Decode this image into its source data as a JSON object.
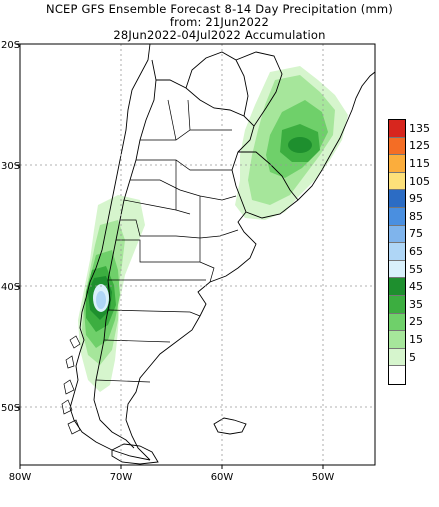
{
  "title": {
    "line1": "NCEP GFS Ensemble Forecast 8-14 Day Precipitation (mm)",
    "line2": "from: 21Jun2022",
    "line3": "28Jun2022-04Jul2022 Accumulation"
  },
  "axes": {
    "lat_labels": [
      "20S",
      "30S",
      "40S",
      "50S"
    ],
    "lon_labels": [
      "80W",
      "70W",
      "60W",
      "50W"
    ],
    "lat_range": [
      -54.5,
      -20
    ],
    "lon_range": [
      -80,
      -45
    ]
  },
  "legend": {
    "position": "right",
    "levels": [
      {
        "label": "135",
        "color": "#d7261e"
      },
      {
        "label": "125",
        "color": "#f46d25"
      },
      {
        "label": "115",
        "color": "#fbad3c"
      },
      {
        "label": "105",
        "color": "#fde07a"
      },
      {
        "label": "95",
        "color": "#2c6cc4"
      },
      {
        "label": "85",
        "color": "#4a8fe0"
      },
      {
        "label": "75",
        "color": "#7fb4ec"
      },
      {
        "label": "65",
        "color": "#afd6f6"
      },
      {
        "label": "55",
        "color": "#d9f0fb"
      },
      {
        "label": "45",
        "color": "#1e8f2e"
      },
      {
        "label": "35",
        "color": "#3cae40"
      },
      {
        "label": "25",
        "color": "#6fd06a"
      },
      {
        "label": "15",
        "color": "#a6e69b"
      },
      {
        "label": "5",
        "color": "#d6f5cd"
      },
      {
        "label": "",
        "color": "#ffffff"
      }
    ]
  },
  "colors": {
    "border": "#000000",
    "grid": "#999999"
  }
}
